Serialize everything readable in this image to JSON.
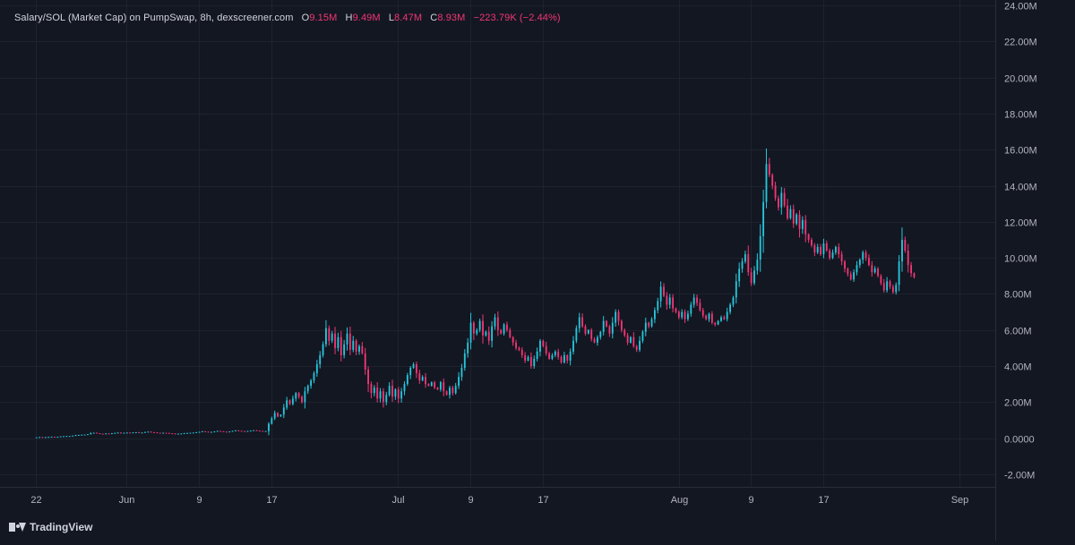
{
  "legend": {
    "symbol": "Salary/SOL (Market Cap) on PumpSwap, 8h, dexscreener.com",
    "o_key": "O",
    "o_val": "9.15M",
    "h_key": "H",
    "h_val": "9.49M",
    "l_key": "L",
    "l_val": "8.47M",
    "c_key": "C",
    "c_val": "8.93M",
    "change": "−223.79K (−2.44%)"
  },
  "branding": {
    "name": "TradingView",
    "icon": "tradingview-logo-icon"
  },
  "colors": {
    "background": "#131722",
    "up": "#26c6da",
    "down": "#f23674",
    "grid": "#1e222d",
    "text": "#b2b5be"
  },
  "chart_data": {
    "type": "candlestick",
    "interval": "8h",
    "x_tick_labels": [
      {
        "label": "22",
        "day": 0
      },
      {
        "label": "Jun",
        "day": 10
      },
      {
        "label": "9",
        "day": 18
      },
      {
        "label": "17",
        "day": 26
      },
      {
        "label": "Jul",
        "day": 40
      },
      {
        "label": "9",
        "day": 48
      },
      {
        "label": "17",
        "day": 56
      },
      {
        "label": "Aug",
        "day": 71
      },
      {
        "label": "9",
        "day": 79
      },
      {
        "label": "17",
        "day": 87
      },
      {
        "label": "Sep",
        "day": 102
      }
    ],
    "y_tick_labels": [
      "24.00M",
      "22.00M",
      "20.00M",
      "18.00M",
      "16.00M",
      "14.00M",
      "12.00M",
      "10.00M",
      "8.00M",
      "6.00M",
      "4.00M",
      "2.00M",
      "0.0000",
      "-2.00M"
    ],
    "y_tick_values": [
      24,
      22,
      20,
      18,
      16,
      14,
      12,
      10,
      8,
      6,
      4,
      2,
      0,
      -2
    ],
    "ylim": [
      -2.7,
      24.3
    ],
    "xlim": [
      -4,
      106
    ],
    "units": "M",
    "close_series": {
      "candles_per_day": 3,
      "start_day": -0.3,
      "values_millions": [
        0.05,
        0.05,
        0.06,
        0.05,
        0.06,
        0.07,
        0.08,
        0.07,
        0.08,
        0.1,
        0.11,
        0.12,
        0.12,
        0.14,
        0.17,
        0.18,
        0.19,
        0.2,
        0.22,
        0.28,
        0.3,
        0.27,
        0.25,
        0.24,
        0.26,
        0.24,
        0.27,
        0.29,
        0.31,
        0.28,
        0.3,
        0.31,
        0.3,
        0.32,
        0.33,
        0.3,
        0.31,
        0.34,
        0.36,
        0.33,
        0.32,
        0.3,
        0.29,
        0.3,
        0.29,
        0.27,
        0.26,
        0.24,
        0.25,
        0.26,
        0.28,
        0.29,
        0.3,
        0.31,
        0.33,
        0.35,
        0.38,
        0.36,
        0.34,
        0.35,
        0.37,
        0.4,
        0.38,
        0.36,
        0.35,
        0.37,
        0.4,
        0.43,
        0.41,
        0.39,
        0.38,
        0.4,
        0.42,
        0.44,
        0.42,
        0.4,
        0.38,
        0.39,
        0.8,
        1.1,
        1.4,
        1.2,
        1.3,
        1.7,
        2.1,
        1.9,
        2.2,
        2.5,
        2.3,
        2.0,
        2.6,
        2.9,
        3.2,
        3.6,
        4.1,
        4.6,
        5.2,
        6.1,
        5.4,
        5.8,
        5.0,
        5.6,
        4.6,
        5.2,
        5.8,
        4.9,
        5.4,
        4.8,
        5.1,
        4.7,
        3.8,
        3.0,
        2.5,
        2.8,
        2.2,
        2.6,
        2.0,
        2.4,
        2.9,
        2.3,
        2.7,
        2.2,
        2.6,
        3.0,
        3.5,
        3.9,
        4.1,
        3.6,
        3.2,
        3.4,
        3.0,
        2.9,
        3.1,
        2.8,
        2.7,
        3.1,
        2.6,
        2.4,
        2.8,
        2.5,
        2.9,
        3.4,
        3.9,
        4.7,
        5.3,
        6.4,
        5.8,
        6.0,
        6.5,
        5.7,
        5.9,
        5.4,
        6.2,
        6.7,
        6.0,
        5.8,
        6.3,
        6.0,
        5.6,
        5.3,
        5.0,
        4.9,
        4.6,
        4.3,
        4.5,
        4.0,
        4.4,
        4.8,
        5.4,
        5.1,
        4.7,
        4.4,
        4.6,
        4.8,
        4.5,
        4.2,
        4.6,
        4.3,
        4.8,
        5.4,
        6.1,
        6.7,
        6.2,
        5.8,
        6.0,
        5.5,
        5.3,
        5.6,
        5.9,
        6.5,
        6.2,
        5.8,
        6.4,
        7.0,
        6.5,
        6.0,
        5.7,
        5.3,
        5.6,
        5.1,
        4.9,
        5.4,
        5.9,
        6.4,
        6.2,
        6.6,
        7.1,
        7.6,
        8.4,
        7.9,
        7.4,
        7.8,
        7.2,
        7.0,
        6.7,
        7.0,
        6.6,
        6.9,
        7.4,
        7.8,
        7.5,
        7.1,
        6.8,
        6.6,
        6.9,
        6.4,
        6.3,
        6.5,
        6.7,
        6.6,
        7.0,
        7.4,
        7.8,
        8.7,
        9.4,
        9.8,
        10.2,
        9.2,
        8.6,
        9.3,
        9.9,
        11.2,
        13.1,
        15.2,
        14.6,
        14.0,
        13.3,
        12.8,
        13.6,
        12.9,
        12.2,
        12.7,
        11.9,
        12.4,
        11.6,
        12.1,
        11.3,
        11.0,
        10.7,
        10.3,
        10.6,
        10.2,
        10.8,
        10.4,
        10.0,
        10.3,
        10.6,
        10.2,
        9.8,
        9.4,
        9.1,
        8.8,
        9.2,
        9.6,
        9.9,
        10.3,
        10.0,
        9.6,
        9.2,
        9.4,
        9.0,
        8.6,
        8.2,
        8.7,
        8.4,
        8.1,
        8.5,
        9.8,
        11.0,
        10.4,
        9.6,
        9.15,
        8.93
      ]
    }
  }
}
